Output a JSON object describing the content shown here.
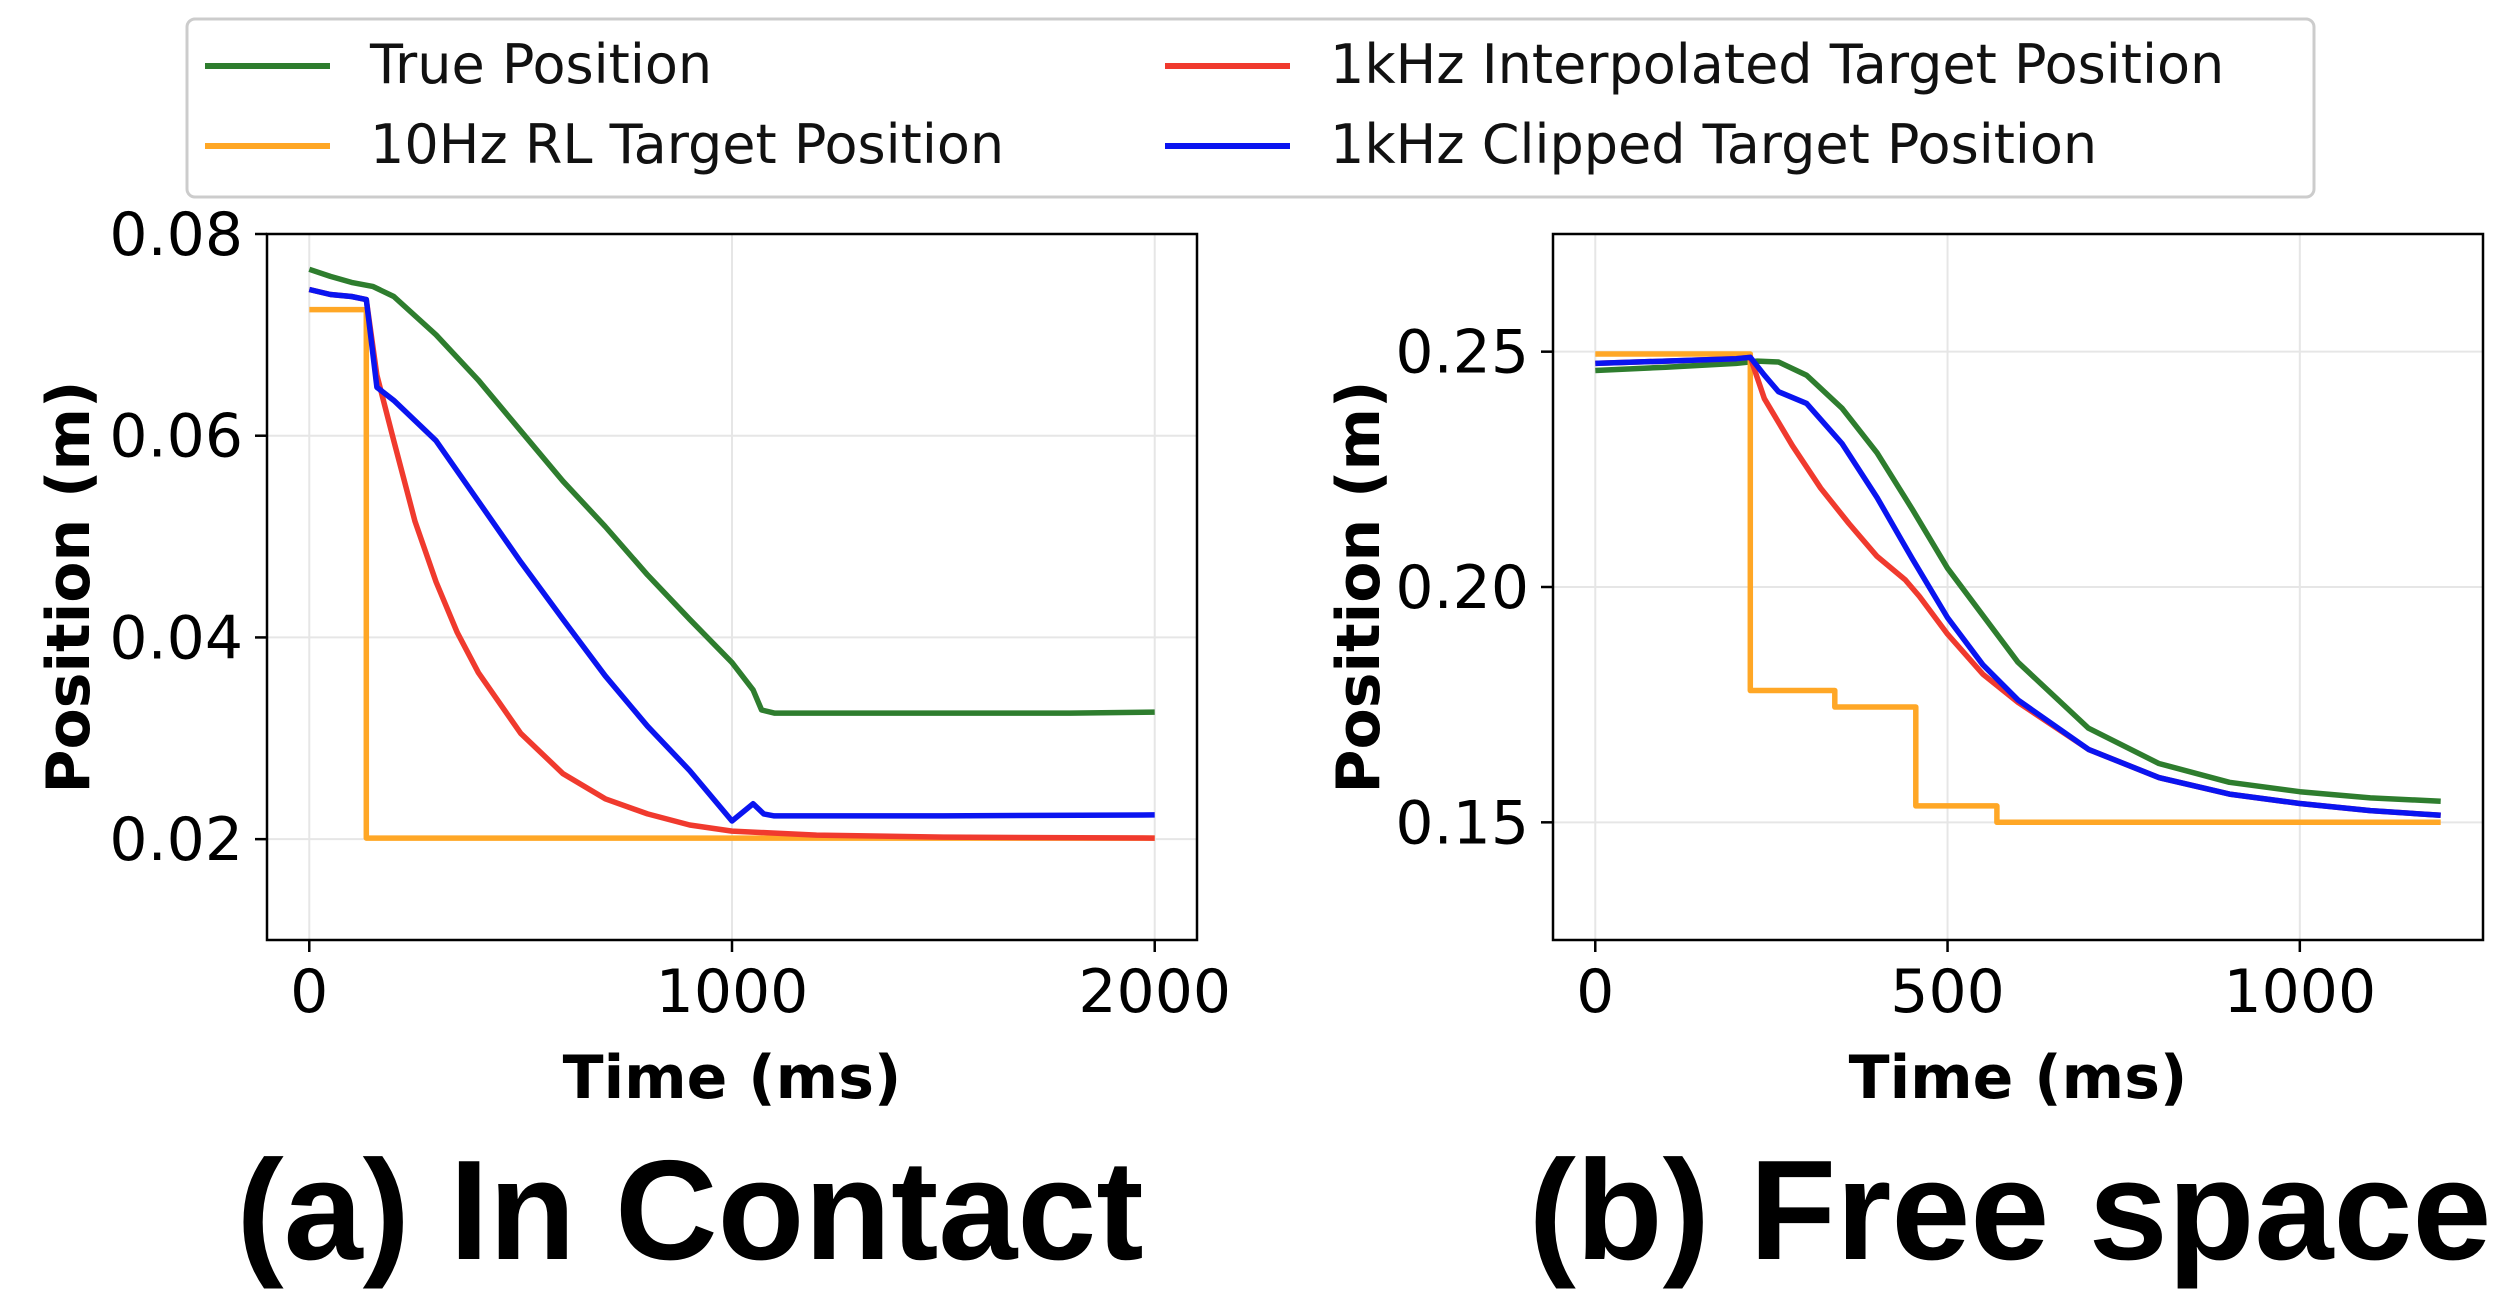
{
  "legend": {
    "entries": [
      {
        "label": "True Position",
        "color": "#2e7d2e"
      },
      {
        "label": "10Hz RL Target Position",
        "color": "#ffa726"
      },
      {
        "label": "1kHz Interpolated Target Position",
        "color": "#f03a2e"
      },
      {
        "label": "1kHz Clipped Target Position",
        "color": "#0a14f0"
      }
    ]
  },
  "captions": {
    "a": "(a) In Contact",
    "b": "(b) Free space"
  },
  "chart_data": [
    {
      "type": "line",
      "title": "(a) In Contact",
      "xlabel": "Time (ms)",
      "ylabel": "Position (m)",
      "xlim": [
        -100,
        2100
      ],
      "ylim": [
        0.01,
        0.08
      ],
      "xticks": [
        0,
        1000,
        2000
      ],
      "yticks": [
        0.02,
        0.04,
        0.06,
        0.08
      ],
      "ytick_labels": [
        "0.02",
        "0.04",
        "0.06",
        "0.08"
      ],
      "grid": true,
      "series": [
        {
          "name": "True Position",
          "color": "#2e7d2e",
          "x": [
            0,
            50,
            100,
            150,
            200,
            300,
            400,
            500,
            600,
            700,
            800,
            900,
            1000,
            1050,
            1070,
            1100,
            1200,
            1400,
            1600,
            1800,
            2000
          ],
          "y": [
            0.0765,
            0.0758,
            0.0752,
            0.0748,
            0.0738,
            0.07,
            0.0655,
            0.0605,
            0.0555,
            0.051,
            0.0462,
            0.0418,
            0.0375,
            0.0348,
            0.0328,
            0.0325,
            0.0325,
            0.0325,
            0.0325,
            0.0325,
            0.0326
          ]
        },
        {
          "name": "10Hz RL Target Position",
          "color": "#ffa726",
          "x": [
            0,
            135,
            135,
            2000
          ],
          "y": [
            0.0725,
            0.0725,
            0.0201,
            0.0201
          ]
        },
        {
          "name": "1kHz Interpolated Target Position",
          "color": "#f03a2e",
          "x": [
            0,
            50,
            100,
            135,
            160,
            200,
            250,
            300,
            350,
            400,
            500,
            600,
            700,
            800,
            900,
            1000,
            1200,
            1500,
            2000
          ],
          "y": [
            0.0745,
            0.074,
            0.0738,
            0.0735,
            0.066,
            0.0595,
            0.0515,
            0.0455,
            0.0405,
            0.0365,
            0.0305,
            0.0265,
            0.024,
            0.0225,
            0.0214,
            0.0208,
            0.0204,
            0.0202,
            0.0201
          ]
        },
        {
          "name": "1kHz Clipped Target Position",
          "color": "#0a14f0",
          "x": [
            0,
            50,
            100,
            135,
            160,
            200,
            300,
            400,
            500,
            600,
            700,
            800,
            900,
            1000,
            1050,
            1075,
            1100,
            1500,
            2000
          ],
          "y": [
            0.0745,
            0.074,
            0.0738,
            0.0735,
            0.0648,
            0.0635,
            0.0595,
            0.0535,
            0.0475,
            0.0418,
            0.0362,
            0.0312,
            0.0268,
            0.0218,
            0.0235,
            0.0225,
            0.0223,
            0.0223,
            0.0224
          ]
        }
      ]
    },
    {
      "type": "line",
      "title": "(b) Free space",
      "xlabel": "Time (ms)",
      "ylabel": "Position (m)",
      "xlim": [
        -60,
        1260
      ],
      "ylim": [
        0.125,
        0.275
      ],
      "xticks": [
        0,
        500,
        1000
      ],
      "yticks": [
        0.15,
        0.2,
        0.25
      ],
      "ytick_labels": [
        "0.15",
        "0.20",
        "0.25"
      ],
      "grid": true,
      "series": [
        {
          "name": "True Position",
          "color": "#2e7d2e",
          "x": [
            0,
            100,
            200,
            230,
            260,
            300,
            350,
            400,
            450,
            500,
            600,
            700,
            800,
            900,
            1000,
            1100,
            1200
          ],
          "y": [
            0.246,
            0.2467,
            0.2475,
            0.248,
            0.2478,
            0.245,
            0.238,
            0.2285,
            0.2165,
            0.204,
            0.184,
            0.17,
            0.1625,
            0.1585,
            0.1565,
            0.1552,
            0.1545
          ]
        },
        {
          "name": "10Hz RL Target Position",
          "color": "#ffa726",
          "x": [
            0,
            220,
            220,
            340,
            340,
            455,
            455,
            570,
            570,
            1200
          ],
          "y": [
            0.2495,
            0.2495,
            0.178,
            0.178,
            0.1745,
            0.1745,
            0.1535,
            0.1535,
            0.15,
            0.15
          ]
        },
        {
          "name": "1kHz Interpolated Target Position",
          "color": "#f03a2e",
          "x": [
            0,
            100,
            200,
            220,
            240,
            280,
            320,
            360,
            400,
            440,
            460,
            500,
            550,
            600,
            700,
            800,
            900,
            1000,
            1100,
            1200
          ],
          "y": [
            0.2475,
            0.248,
            0.2485,
            0.2488,
            0.24,
            0.23,
            0.221,
            0.2135,
            0.2065,
            0.2015,
            0.198,
            0.19,
            0.1815,
            0.1755,
            0.1655,
            0.1595,
            0.156,
            0.154,
            0.1525,
            0.1515
          ]
        },
        {
          "name": "1kHz Clipped Target Position",
          "color": "#0a14f0",
          "x": [
            0,
            100,
            200,
            220,
            240,
            260,
            300,
            350,
            400,
            450,
            500,
            550,
            600,
            700,
            800,
            900,
            1000,
            1100,
            1200
          ],
          "y": [
            0.2475,
            0.248,
            0.2485,
            0.2488,
            0.245,
            0.2415,
            0.239,
            0.2305,
            0.219,
            0.206,
            0.1935,
            0.1835,
            0.176,
            0.1655,
            0.1595,
            0.156,
            0.154,
            0.1525,
            0.1515
          ]
        }
      ]
    }
  ]
}
